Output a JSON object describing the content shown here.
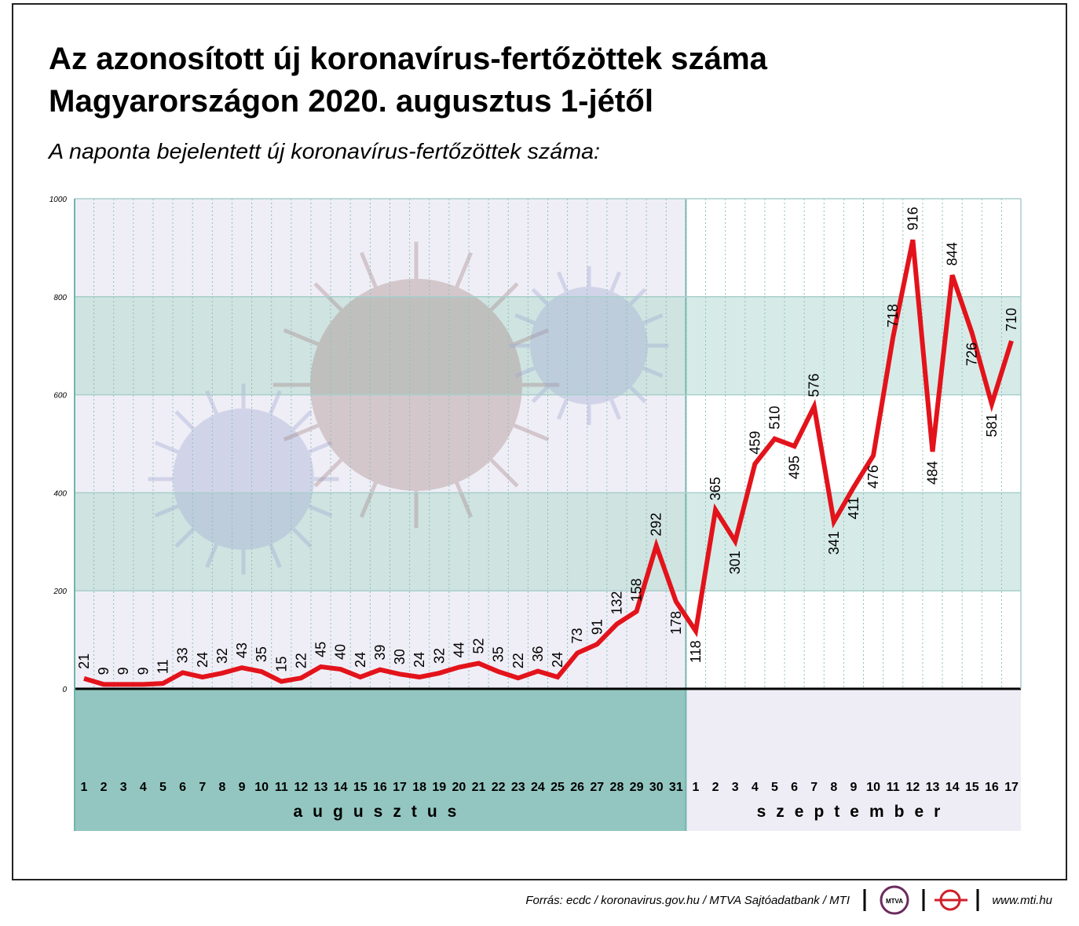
{
  "chart_data": {
    "type": "line",
    "title": [
      "Az azonosított új koronavírus-fertőzöttek száma",
      "Magyarországon 2020. augusztus 1-jétől"
    ],
    "subtitle": "A naponta bejelentett új koronavírus-fertőzöttek száma:",
    "categories": [
      "1",
      "2",
      "3",
      "4",
      "5",
      "6",
      "7",
      "8",
      "9",
      "10",
      "11",
      "12",
      "13",
      "14",
      "15",
      "16",
      "17",
      "18",
      "19",
      "20",
      "21",
      "22",
      "23",
      "24",
      "25",
      "26",
      "27",
      "28",
      "29",
      "30",
      "31",
      "1",
      "2",
      "3",
      "4",
      "5",
      "6",
      "7",
      "8",
      "9",
      "10",
      "11",
      "12",
      "13",
      "14",
      "15",
      "16",
      "17"
    ],
    "months": [
      "augusztus",
      "szeptember"
    ],
    "values": [
      21,
      9,
      9,
      9,
      11,
      33,
      24,
      32,
      43,
      35,
      15,
      22,
      45,
      40,
      24,
      39,
      30,
      24,
      32,
      44,
      52,
      35,
      22,
      36,
      24,
      73,
      91,
      132,
      158,
      292,
      178,
      118,
      365,
      301,
      459,
      510,
      495,
      576,
      341,
      411,
      476,
      718,
      916,
      484,
      844,
      726,
      581,
      710
    ],
    "color": "#e3131b",
    "ylim": [
      0,
      1000
    ],
    "yticks": [
      0,
      200,
      400,
      600,
      800,
      1000
    ],
    "grid": true,
    "source": "Forrás: ecdc / koronavirus.gov.hu / MTVA Sajtóadatbank / MTI",
    "logo_text": "MTVA",
    "website": "www.mti.hu"
  }
}
